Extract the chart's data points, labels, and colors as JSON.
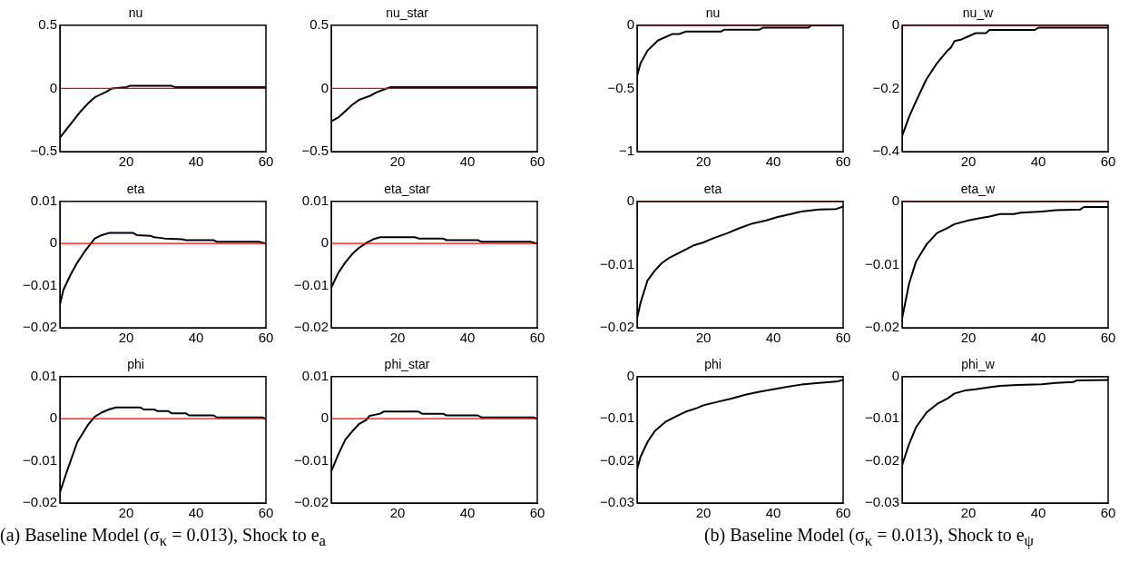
{
  "chart_data": [
    {
      "type": "line",
      "title": "nu",
      "x": [
        1,
        3,
        5,
        7,
        9,
        11,
        14,
        16,
        18,
        20,
        21,
        33,
        34,
        60
      ],
      "series": [
        {
          "color": "#000000",
          "values": [
            -0.39,
            -0.32,
            -0.25,
            -0.18,
            -0.12,
            -0.07,
            -0.03,
            0,
            0.005,
            0.01,
            0.02,
            0.02,
            0.01,
            0.01
          ]
        }
      ],
      "xlim": [
        1,
        60
      ],
      "xticks": [
        20,
        40,
        60
      ],
      "ylim": [
        -0.5,
        0.5
      ],
      "yticks": [
        -0.5,
        0,
        0.5
      ],
      "ref_lines": [
        {
          "axis": "y",
          "value": 0,
          "color": "#ff0000"
        }
      ],
      "grid": false,
      "legend": false
    },
    {
      "type": "line",
      "title": "nu_star",
      "x": [
        1,
        3,
        5,
        7,
        9,
        12,
        14,
        16,
        18,
        60
      ],
      "series": [
        {
          "color": "#000000",
          "values": [
            -0.26,
            -0.23,
            -0.18,
            -0.13,
            -0.09,
            -0.06,
            -0.03,
            -0.01,
            0.01,
            0.01
          ]
        }
      ],
      "xlim": [
        1,
        60
      ],
      "xticks": [
        20,
        40,
        60
      ],
      "ylim": [
        -0.5,
        0.5
      ],
      "yticks": [
        -0.5,
        0,
        0.5
      ],
      "ref_lines": [
        {
          "axis": "y",
          "value": 0,
          "color": "#ff0000"
        }
      ],
      "grid": false,
      "legend": false
    },
    {
      "type": "line",
      "title": "eta",
      "x": [
        1,
        2,
        4,
        6,
        8,
        11,
        13,
        15,
        22,
        23,
        27,
        28,
        31,
        36,
        37,
        45,
        46,
        58,
        60
      ],
      "series": [
        {
          "color": "#000000",
          "values": [
            -0.0145,
            -0.011,
            -0.0075,
            -0.0045,
            -0.002,
            0.0012,
            0.002,
            0.0025,
            0.0025,
            0.002,
            0.0018,
            0.0015,
            0.0012,
            0.001,
            0.0008,
            0.0008,
            0.0004,
            0.0004,
            0
          ]
        }
      ],
      "xlim": [
        1,
        60
      ],
      "xticks": [
        20,
        40,
        60
      ],
      "ylim": [
        -0.02,
        0.01
      ],
      "yticks": [
        -0.02,
        -0.01,
        0,
        0.01
      ],
      "ref_lines": [
        {
          "axis": "y",
          "value": 0,
          "color": "#ff0000"
        }
      ],
      "grid": false,
      "legend": false
    },
    {
      "type": "line",
      "title": "eta_star",
      "x": [
        1,
        3,
        5,
        7,
        9,
        11,
        13,
        15,
        25,
        26,
        33,
        34,
        43,
        44,
        58,
        60
      ],
      "series": [
        {
          "color": "#000000",
          "values": [
            -0.0105,
            -0.007,
            -0.0045,
            -0.0025,
            -0.001,
            0.0001,
            0.001,
            0.0015,
            0.0015,
            0.0012,
            0.0012,
            0.0008,
            0.0008,
            0.0004,
            0.0004,
            0
          ]
        }
      ],
      "xlim": [
        1,
        60
      ],
      "xticks": [
        20,
        40,
        60
      ],
      "ylim": [
        -0.02,
        0.01
      ],
      "yticks": [
        -0.02,
        -0.01,
        0,
        0.01
      ],
      "ref_lines": [
        {
          "axis": "y",
          "value": 0,
          "color": "#ff0000"
        }
      ],
      "grid": false,
      "legend": false
    },
    {
      "type": "line",
      "title": "phi",
      "x": [
        1,
        3,
        6,
        9,
        11,
        13,
        15,
        17,
        24,
        25,
        28,
        29,
        32,
        33,
        37,
        38,
        45,
        46,
        59,
        60
      ],
      "series": [
        {
          "color": "#000000",
          "values": [
            -0.0175,
            -0.0125,
            -0.0055,
            -0.0015,
            0.0005,
            0.0015,
            0.0022,
            0.0027,
            0.0027,
            0.0022,
            0.0022,
            0.0018,
            0.0018,
            0.0013,
            0.0013,
            0.0008,
            0.0008,
            0.0003,
            0.0003,
            0
          ]
        }
      ],
      "xlim": [
        1,
        60
      ],
      "xticks": [
        20,
        40,
        60
      ],
      "ylim": [
        -0.02,
        0.01
      ],
      "yticks": [
        -0.02,
        -0.01,
        0,
        0.01
      ],
      "ref_lines": [
        {
          "axis": "y",
          "value": 0,
          "color": "#ff0000"
        }
      ],
      "grid": false,
      "legend": false,
      "annotations": [
        "(a) Baseline Model (σ$_{κ}$ = 0.013), Shock to e$_{a}$"
      ]
    },
    {
      "type": "line",
      "title": "phi_star",
      "x": [
        1,
        3,
        5,
        7,
        9,
        11,
        12,
        15,
        16,
        26,
        27,
        33,
        34,
        43,
        44,
        59,
        60
      ],
      "series": [
        {
          "color": "#000000",
          "values": [
            -0.0125,
            -0.0085,
            -0.005,
            -0.003,
            -0.0012,
            -0.0003,
            0.0007,
            0.0012,
            0.0017,
            0.0017,
            0.0012,
            0.0012,
            0.0008,
            0.0008,
            0.0003,
            0.0003,
            0
          ]
        }
      ],
      "xlim": [
        1,
        60
      ],
      "xticks": [
        20,
        40,
        60
      ],
      "ylim": [
        -0.02,
        0.01
      ],
      "yticks": [
        -0.02,
        -0.01,
        0,
        0.01
      ],
      "ref_lines": [
        {
          "axis": "y",
          "value": 0,
          "color": "#ff0000"
        }
      ],
      "grid": false,
      "legend": false
    },
    {
      "type": "line",
      "title": "nu",
      "x": [
        1,
        2,
        4,
        7,
        11,
        13,
        15,
        25,
        26,
        36,
        37,
        50,
        51,
        60
      ],
      "series": [
        {
          "color": "#000000",
          "values": [
            -0.4,
            -0.3,
            -0.2,
            -0.12,
            -0.07,
            -0.07,
            -0.05,
            -0.05,
            -0.035,
            -0.035,
            -0.02,
            -0.02,
            0,
            0
          ]
        }
      ],
      "xlim": [
        1,
        60
      ],
      "xticks": [
        20,
        40,
        60
      ],
      "ylim": [
        -1,
        0
      ],
      "yticks": [
        -1,
        -0.5,
        0
      ],
      "ref_lines": [
        {
          "axis": "y",
          "value": 0,
          "color": "#ff0000"
        }
      ],
      "grid": false,
      "legend": false
    },
    {
      "type": "line",
      "title": "nu_w",
      "x": [
        1,
        3,
        5,
        8,
        11,
        14,
        15,
        16,
        18,
        20,
        22,
        25,
        26,
        39,
        40,
        60
      ],
      "series": [
        {
          "color": "#000000",
          "values": [
            -0.35,
            -0.29,
            -0.24,
            -0.17,
            -0.12,
            -0.08,
            -0.07,
            -0.05,
            -0.045,
            -0.035,
            -0.025,
            -0.025,
            -0.015,
            -0.015,
            -0.008,
            -0.008
          ]
        }
      ],
      "xlim": [
        1,
        60
      ],
      "xticks": [
        20,
        40,
        60
      ],
      "ylim": [
        -0.4,
        0
      ],
      "yticks": [
        -0.4,
        -0.2,
        0
      ],
      "ref_lines": [
        {
          "axis": "y",
          "value": 0,
          "color": "#ff0000"
        }
      ],
      "grid": false,
      "legend": false
    },
    {
      "type": "line",
      "title": "eta",
      "x": [
        1,
        2,
        4,
        6,
        8,
        10,
        15,
        17,
        20,
        23,
        27,
        30,
        34,
        38,
        41,
        45,
        48,
        53,
        58,
        60
      ],
      "series": [
        {
          "color": "#000000",
          "values": [
            -0.0185,
            -0.016,
            -0.0125,
            -0.011,
            -0.0098,
            -0.009,
            -0.0076,
            -0.007,
            -0.0065,
            -0.0058,
            -0.005,
            -0.0043,
            -0.0035,
            -0.003,
            -0.0025,
            -0.002,
            -0.0016,
            -0.0013,
            -0.0012,
            -0.0008
          ]
        }
      ],
      "xlim": [
        1,
        60
      ],
      "xticks": [
        20,
        40,
        60
      ],
      "ylim": [
        -0.02,
        0
      ],
      "yticks": [
        -0.02,
        -0.01,
        0
      ],
      "ref_lines": [
        {
          "axis": "y",
          "value": 0,
          "color": "#ff0000"
        }
      ],
      "grid": false,
      "legend": false
    },
    {
      "type": "line",
      "title": "eta_w",
      "x": [
        1,
        3,
        5,
        8,
        11,
        14,
        16,
        20,
        23,
        26,
        29,
        33,
        35,
        41,
        45,
        52,
        53,
        60
      ],
      "series": [
        {
          "color": "#000000",
          "values": [
            -0.0185,
            -0.013,
            -0.0095,
            -0.0068,
            -0.005,
            -0.0042,
            -0.0036,
            -0.003,
            -0.0027,
            -0.0024,
            -0.002,
            -0.002,
            -0.0018,
            -0.0016,
            -0.0014,
            -0.0013,
            -0.0009,
            -0.0009
          ]
        }
      ],
      "xlim": [
        1,
        60
      ],
      "xticks": [
        20,
        40,
        60
      ],
      "ylim": [
        -0.02,
        0
      ],
      "yticks": [
        -0.02,
        -0.01,
        0
      ],
      "ref_lines": [
        {
          "axis": "y",
          "value": 0,
          "color": "#ff0000"
        }
      ],
      "grid": false,
      "legend": false
    },
    {
      "type": "line",
      "title": "phi",
      "x": [
        1,
        2,
        4,
        6,
        9,
        12,
        15,
        18,
        20,
        24,
        28,
        32,
        36,
        40,
        44,
        48,
        53,
        58,
        60
      ],
      "series": [
        {
          "color": "#000000",
          "values": [
            -0.022,
            -0.019,
            -0.0155,
            -0.013,
            -0.0108,
            -0.0095,
            -0.0083,
            -0.0075,
            -0.0068,
            -0.006,
            -0.0052,
            -0.0043,
            -0.0036,
            -0.003,
            -0.0024,
            -0.0019,
            -0.0015,
            -0.0012,
            -0.0008
          ]
        }
      ],
      "xlim": [
        1,
        60
      ],
      "xticks": [
        20,
        40,
        60
      ],
      "ylim": [
        -0.03,
        0
      ],
      "yticks": [
        -0.03,
        -0.02,
        -0.01,
        0
      ],
      "ref_lines": [
        {
          "axis": "y",
          "value": 0,
          "color": "#ff0000"
        }
      ],
      "grid": false,
      "legend": false,
      "annotations": [
        "(b) Baseline Model (σ$_{κ}$ = 0.013), Shock to e$_{ψ}$"
      ]
    },
    {
      "type": "line",
      "title": "phi_w",
      "x": [
        1,
        3,
        5,
        8,
        11,
        14,
        16,
        19,
        22,
        26,
        29,
        34,
        41,
        45,
        50,
        51,
        60
      ],
      "series": [
        {
          "color": "#000000",
          "values": [
            -0.021,
            -0.016,
            -0.012,
            -0.0085,
            -0.0065,
            -0.0052,
            -0.004,
            -0.0033,
            -0.003,
            -0.0025,
            -0.0022,
            -0.002,
            -0.0018,
            -0.0015,
            -0.0013,
            -0.0009,
            -0.0008
          ]
        }
      ],
      "xlim": [
        1,
        60
      ],
      "xticks": [
        20,
        40,
        60
      ],
      "ylim": [
        -0.03,
        0
      ],
      "yticks": [
        -0.03,
        -0.02,
        -0.01,
        0
      ],
      "ref_lines": [
        {
          "axis": "y",
          "value": 0,
          "color": "#ff0000"
        }
      ],
      "grid": false,
      "legend": false
    }
  ]
}
